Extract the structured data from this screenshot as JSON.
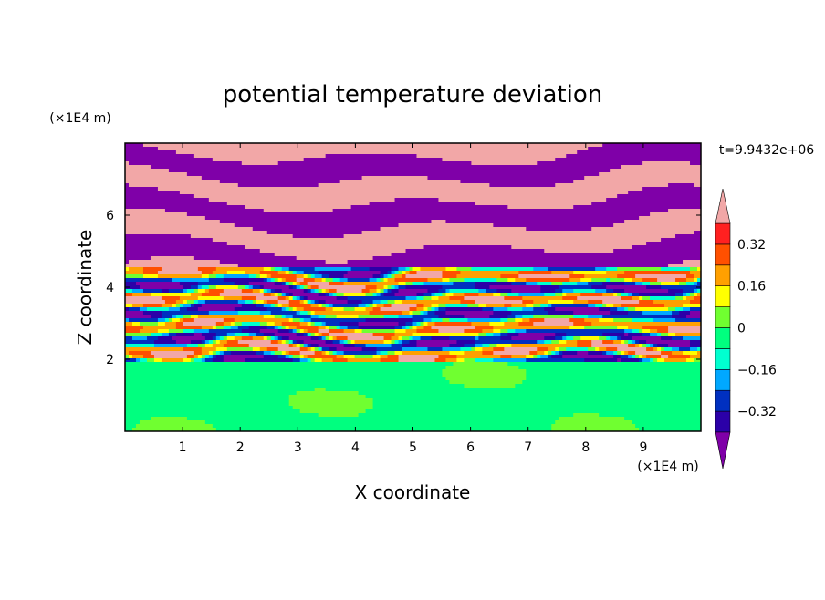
{
  "chart_data": {
    "type": "heatmap",
    "title": "potential temperature deviation",
    "xlabel": "X coordinate",
    "ylabel": "Z coordinate",
    "x_unit": "(×1E4 m)",
    "y_unit": "(×1E4 m)",
    "time_label": "t=9.9432e+06",
    "xlim": [
      0,
      10
    ],
    "ylim": [
      0,
      8
    ],
    "x_ticks": [
      "1",
      "2",
      "3",
      "4",
      "5",
      "6",
      "7",
      "8",
      "9"
    ],
    "y_ticks": [
      "2",
      "4",
      "6"
    ],
    "colorbar": {
      "tick_labels": [
        "0.32",
        "0.16",
        "0",
        "−0.16",
        "−0.32"
      ],
      "levels": [
        -0.4,
        -0.32,
        -0.24,
        -0.16,
        -0.08,
        0,
        0.08,
        0.16,
        0.24,
        0.32,
        0.4
      ],
      "colors": [
        "#7f00a8",
        "#2b00a8",
        "#0030c0",
        "#00a8ff",
        "#00ffd0",
        "#00ff7f",
        "#70ff30",
        "#ffff00",
        "#ffa000",
        "#ff5000",
        "#ff2020",
        "#f2a7a7"
      ],
      "extend": "both"
    },
    "field_summary": {
      "description": "layered horizontal bands of alternating positive (pink) and negative (purple) deviation above z=2; mixed multicolor filaments between z=2 and z=4.5; near-zero (green) values below z=2"
    }
  }
}
